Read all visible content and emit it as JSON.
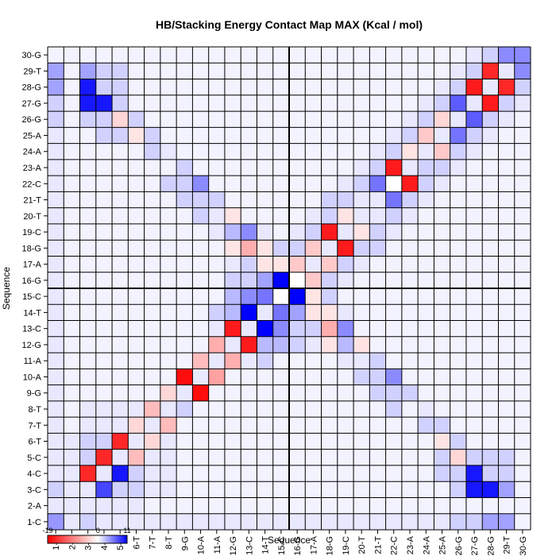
{
  "chart_data": {
    "type": "heatmap",
    "title": "HB/Stacking Energy Contact Map MAX (Kcal / mol)",
    "xlabel": "Sequence",
    "ylabel": "Sequence",
    "labels": [
      "1-C",
      "2-A",
      "3-C",
      "4-C",
      "5-C",
      "6-T",
      "7-T",
      "8-T",
      "9-G",
      "10-A",
      "11-A",
      "12-G",
      "13-C",
      "14-T",
      "15-C",
      "16-G",
      "17-A",
      "18-G",
      "19-C",
      "20-T",
      "21-T",
      "22-C",
      "23-A",
      "24-A",
      "25-A",
      "26-G",
      "27-G",
      "28-G",
      "29-T",
      "30-G"
    ],
    "colorbar": {
      "min": -19,
      "mid": 0,
      "max": 11,
      "tick_labels": [
        "-19",
        "0",
        "11"
      ],
      "low_color": "#ff0000",
      "mid_color": "#ffffff",
      "high_color": "#0000ff"
    },
    "grid": true,
    "divider_after_index": 15,
    "cells": [
      [
        0,
        0,
        4.5
      ],
      [
        1,
        1,
        1
      ],
      [
        2,
        2,
        1
      ],
      [
        3,
        3,
        1
      ],
      [
        4,
        4,
        1
      ],
      [
        5,
        5,
        1
      ],
      [
        6,
        6,
        1
      ],
      [
        7,
        7,
        1
      ],
      [
        8,
        8,
        1
      ],
      [
        9,
        9,
        1
      ],
      [
        10,
        10,
        1
      ],
      [
        11,
        11,
        1
      ],
      [
        12,
        12,
        1
      ],
      [
        13,
        13,
        1
      ],
      [
        14,
        14,
        0
      ],
      [
        15,
        15,
        0
      ],
      [
        16,
        16,
        1
      ],
      [
        17,
        17,
        1
      ],
      [
        18,
        18,
        1
      ],
      [
        19,
        19,
        1
      ],
      [
        20,
        20,
        1
      ],
      [
        21,
        21,
        0
      ],
      [
        22,
        22,
        1
      ],
      [
        23,
        23,
        1
      ],
      [
        24,
        24,
        1
      ],
      [
        25,
        25,
        1
      ],
      [
        26,
        26,
        1
      ],
      [
        27,
        27,
        1
      ],
      [
        28,
        28,
        1
      ],
      [
        29,
        29,
        5
      ],
      [
        0,
        1,
        1
      ],
      [
        1,
        2,
        1
      ],
      [
        2,
        3,
        -16
      ],
      [
        3,
        4,
        -16
      ],
      [
        4,
        5,
        -16
      ],
      [
        5,
        6,
        -3
      ],
      [
        6,
        7,
        -5
      ],
      [
        7,
        8,
        -3
      ],
      [
        8,
        9,
        -18
      ],
      [
        9,
        10,
        -5
      ],
      [
        10,
        11,
        -6
      ],
      [
        11,
        12,
        -17
      ],
      [
        12,
        13,
        11
      ],
      [
        13,
        14,
        6
      ],
      [
        14,
        15,
        11
      ],
      [
        15,
        16,
        -4
      ],
      [
        16,
        17,
        -4
      ],
      [
        17,
        18,
        -17
      ],
      [
        18,
        19,
        -2
      ],
      [
        19,
        20,
        1
      ],
      [
        20,
        21,
        6
      ],
      [
        21,
        22,
        -17
      ],
      [
        22,
        23,
        -2
      ],
      [
        23,
        24,
        -4
      ],
      [
        24,
        25,
        -3
      ],
      [
        25,
        26,
        7
      ],
      [
        26,
        27,
        -17
      ],
      [
        27,
        28,
        -16
      ],
      [
        28,
        29,
        5
      ],
      [
        1,
        0,
        1
      ],
      [
        2,
        1,
        1
      ],
      [
        3,
        2,
        8
      ],
      [
        4,
        3,
        10
      ],
      [
        5,
        4,
        -5
      ],
      [
        6,
        5,
        -3
      ],
      [
        7,
        6,
        -5
      ],
      [
        8,
        7,
        2
      ],
      [
        9,
        8,
        -18
      ],
      [
        10,
        9,
        -7
      ],
      [
        11,
        10,
        -6
      ],
      [
        12,
        11,
        -17
      ],
      [
        13,
        12,
        11
      ],
      [
        14,
        13,
        6
      ],
      [
        15,
        14,
        11
      ],
      [
        16,
        15,
        -4
      ],
      [
        17,
        16,
        -4
      ],
      [
        18,
        17,
        -17
      ],
      [
        19,
        18,
        -2
      ],
      [
        20,
        19,
        1
      ],
      [
        21,
        20,
        6
      ],
      [
        22,
        21,
        -17
      ],
      [
        23,
        22,
        2
      ],
      [
        24,
        23,
        -4
      ],
      [
        25,
        24,
        6
      ],
      [
        26,
        25,
        7
      ],
      [
        27,
        26,
        -17
      ],
      [
        28,
        27,
        -16
      ],
      [
        29,
        28,
        5
      ],
      [
        0,
        2,
        2
      ],
      [
        0,
        3,
        1
      ],
      [
        0,
        4,
        1
      ],
      [
        0,
        5,
        1
      ],
      [
        0,
        6,
        1
      ],
      [
        0,
        7,
        1
      ],
      [
        0,
        8,
        1
      ],
      [
        0,
        9,
        1
      ],
      [
        0,
        10,
        1
      ],
      [
        0,
        11,
        1
      ],
      [
        0,
        12,
        1
      ],
      [
        0,
        13,
        1
      ],
      [
        0,
        14,
        1
      ],
      [
        0,
        15,
        1
      ],
      [
        0,
        16,
        1
      ],
      [
        0,
        17,
        1
      ],
      [
        0,
        18,
        1
      ],
      [
        0,
        19,
        1
      ],
      [
        0,
        20,
        1
      ],
      [
        0,
        21,
        1
      ],
      [
        0,
        22,
        1
      ],
      [
        0,
        23,
        1
      ],
      [
        0,
        24,
        1
      ],
      [
        0,
        25,
        2
      ],
      [
        0,
        26,
        2
      ],
      [
        0,
        27,
        4
      ],
      [
        0,
        28,
        4
      ],
      [
        2,
        0,
        2
      ],
      [
        3,
        0,
        1
      ],
      [
        4,
        0,
        1
      ],
      [
        5,
        0,
        1
      ],
      [
        6,
        0,
        1
      ],
      [
        7,
        0,
        1
      ],
      [
        8,
        0,
        1
      ],
      [
        9,
        0,
        1
      ],
      [
        10,
        0,
        1
      ],
      [
        11,
        0,
        1
      ],
      [
        12,
        0,
        1
      ],
      [
        13,
        0,
        1
      ],
      [
        14,
        0,
        1
      ],
      [
        15,
        0,
        1
      ],
      [
        16,
        0,
        1
      ],
      [
        17,
        0,
        1
      ],
      [
        18,
        0,
        1
      ],
      [
        19,
        0,
        1
      ],
      [
        20,
        0,
        1
      ],
      [
        21,
        0,
        1
      ],
      [
        22,
        0,
        1
      ],
      [
        23,
        0,
        1
      ],
      [
        24,
        0,
        1
      ],
      [
        25,
        0,
        2
      ],
      [
        26,
        0,
        2
      ],
      [
        27,
        0,
        4
      ],
      [
        28,
        0,
        4
      ],
      [
        1,
        3,
        1
      ],
      [
        1,
        4,
        1
      ],
      [
        1,
        5,
        1
      ],
      [
        2,
        4,
        2
      ],
      [
        2,
        5,
        2
      ],
      [
        3,
        5,
        2
      ],
      [
        2,
        6,
        1
      ],
      [
        3,
        6,
        1
      ],
      [
        4,
        6,
        1
      ],
      [
        2,
        7,
        1
      ],
      [
        3,
        7,
        1
      ],
      [
        4,
        7,
        1
      ],
      [
        5,
        7,
        1
      ],
      [
        3,
        1,
        1
      ],
      [
        4,
        1,
        1
      ],
      [
        5,
        1,
        1
      ],
      [
        4,
        2,
        2
      ],
      [
        5,
        2,
        2
      ],
      [
        5,
        3,
        2
      ],
      [
        6,
        2,
        1
      ],
      [
        6,
        3,
        1
      ],
      [
        6,
        4,
        1
      ],
      [
        7,
        2,
        1
      ],
      [
        7,
        3,
        1
      ],
      [
        7,
        4,
        1
      ],
      [
        7,
        5,
        1
      ],
      [
        2,
        28,
        4
      ],
      [
        3,
        28,
        2
      ],
      [
        4,
        28,
        2
      ],
      [
        2,
        27,
        10
      ],
      [
        3,
        27,
        2
      ],
      [
        4,
        27,
        2
      ],
      [
        2,
        26,
        10
      ],
      [
        3,
        26,
        10
      ],
      [
        4,
        26,
        2
      ],
      [
        2,
        25,
        2
      ],
      [
        3,
        25,
        2
      ],
      [
        4,
        25,
        -3
      ],
      [
        5,
        25,
        2
      ],
      [
        3,
        24,
        2
      ],
      [
        4,
        24,
        2
      ],
      [
        5,
        24,
        -2
      ],
      [
        6,
        24,
        2
      ],
      [
        6,
        23,
        2
      ],
      [
        7,
        23,
        1
      ],
      [
        28,
        2,
        4
      ],
      [
        28,
        3,
        2
      ],
      [
        28,
        4,
        2
      ],
      [
        27,
        2,
        10
      ],
      [
        27,
        3,
        2
      ],
      [
        27,
        4,
        2
      ],
      [
        26,
        2,
        10
      ],
      [
        26,
        3,
        10
      ],
      [
        26,
        4,
        2
      ],
      [
        25,
        2,
        2
      ],
      [
        25,
        3,
        2
      ],
      [
        25,
        4,
        -3
      ],
      [
        25,
        5,
        2
      ],
      [
        24,
        3,
        2
      ],
      [
        24,
        4,
        2
      ],
      [
        24,
        5,
        -2
      ],
      [
        24,
        6,
        2
      ],
      [
        23,
        6,
        2
      ],
      [
        23,
        7,
        1
      ],
      [
        8,
        21,
        2
      ],
      [
        8,
        22,
        2
      ],
      [
        9,
        21,
        5
      ],
      [
        9,
        20,
        2
      ],
      [
        7,
        21,
        2
      ],
      [
        8,
        20,
        2
      ],
      [
        9,
        19,
        2
      ],
      [
        10,
        19,
        1
      ],
      [
        10,
        20,
        2
      ],
      [
        11,
        18,
        3
      ],
      [
        11,
        19,
        -2
      ],
      [
        12,
        18,
        5
      ],
      [
        12,
        17,
        -6
      ],
      [
        11,
        17,
        -2
      ],
      [
        10,
        18,
        1
      ],
      [
        13,
        17,
        -2
      ],
      [
        13,
        16,
        -2
      ],
      [
        12,
        16,
        -2
      ],
      [
        13,
        18,
        1
      ],
      [
        14,
        16,
        -2
      ],
      [
        14,
        17,
        2
      ],
      [
        11,
        16,
        1
      ],
      [
        12,
        15,
        2
      ],
      [
        21,
        8,
        2
      ],
      [
        22,
        8,
        2
      ],
      [
        21,
        9,
        5
      ],
      [
        20,
        9,
        2
      ],
      [
        21,
        7,
        2
      ],
      [
        20,
        8,
        2
      ],
      [
        19,
        9,
        2
      ],
      [
        19,
        10,
        1
      ],
      [
        20,
        10,
        2
      ],
      [
        18,
        11,
        3
      ],
      [
        19,
        11,
        -2
      ],
      [
        18,
        12,
        5
      ],
      [
        17,
        12,
        -6
      ],
      [
        17,
        11,
        -2
      ],
      [
        18,
        10,
        1
      ],
      [
        17,
        13,
        -2
      ],
      [
        16,
        13,
        -2
      ],
      [
        16,
        12,
        -2
      ],
      [
        18,
        13,
        1
      ],
      [
        16,
        14,
        -2
      ],
      [
        17,
        14,
        2
      ],
      [
        16,
        11,
        1
      ],
      [
        15,
        12,
        2
      ],
      [
        11,
        13,
        3
      ],
      [
        11,
        14,
        3
      ],
      [
        12,
        14,
        5
      ],
      [
        13,
        15,
        4
      ],
      [
        10,
        12,
        1
      ],
      [
        10,
        13,
        2
      ],
      [
        11,
        15,
        2
      ],
      [
        12,
        16,
        2
      ],
      [
        13,
        11,
        3
      ],
      [
        14,
        11,
        3
      ],
      [
        14,
        12,
        5
      ],
      [
        15,
        13,
        4
      ],
      [
        12,
        10,
        1
      ],
      [
        13,
        10,
        2
      ],
      [
        15,
        11,
        2
      ],
      [
        16,
        12,
        2
      ],
      [
        15,
        17,
        2
      ],
      [
        16,
        18,
        2
      ],
      [
        17,
        19,
        2
      ],
      [
        15,
        18,
        1
      ],
      [
        16,
        19,
        1
      ],
      [
        17,
        20,
        2
      ],
      [
        18,
        20,
        2
      ],
      [
        18,
        21,
        1
      ],
      [
        19,
        21,
        2
      ],
      [
        19,
        22,
        1
      ],
      [
        20,
        22,
        2
      ],
      [
        20,
        23,
        1
      ],
      [
        21,
        23,
        2
      ],
      [
        21,
        24,
        1
      ],
      [
        22,
        24,
        2
      ],
      [
        22,
        25,
        1
      ],
      [
        23,
        25,
        2
      ],
      [
        23,
        26,
        1
      ],
      [
        24,
        26,
        2
      ],
      [
        24,
        27,
        1
      ],
      [
        25,
        27,
        2
      ],
      [
        25,
        28,
        1
      ],
      [
        26,
        28,
        2
      ],
      [
        26,
        29,
        1
      ],
      [
        27,
        29,
        2
      ],
      [
        17,
        15,
        2
      ],
      [
        18,
        16,
        2
      ],
      [
        19,
        17,
        2
      ],
      [
        18,
        15,
        1
      ],
      [
        19,
        16,
        1
      ],
      [
        20,
        17,
        2
      ],
      [
        20,
        18,
        2
      ],
      [
        21,
        18,
        1
      ],
      [
        21,
        19,
        2
      ],
      [
        22,
        19,
        1
      ],
      [
        22,
        20,
        2
      ],
      [
        23,
        20,
        1
      ],
      [
        23,
        21,
        2
      ],
      [
        24,
        21,
        1
      ],
      [
        24,
        22,
        2
      ],
      [
        25,
        22,
        1
      ],
      [
        25,
        23,
        2
      ],
      [
        26,
        23,
        1
      ],
      [
        26,
        24,
        2
      ],
      [
        27,
        24,
        1
      ],
      [
        27,
        25,
        2
      ],
      [
        28,
        25,
        1
      ],
      [
        28,
        26,
        2
      ],
      [
        29,
        26,
        1
      ],
      [
        29,
        27,
        2
      ]
    ]
  }
}
